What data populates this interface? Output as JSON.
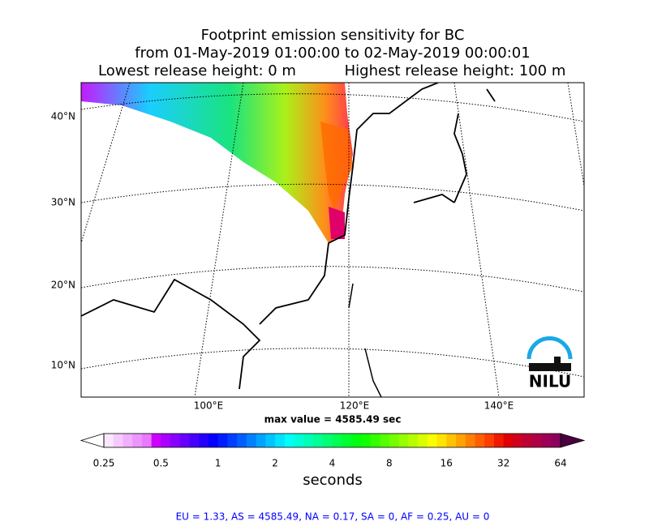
{
  "title": {
    "lines": [
      "Footprint emission sensitivity for BC",
      "from 01-May-2019 01:00:00 to 02-May-2019 00:00:01"
    ],
    "left": "Lowest release height: 0 m",
    "right": "Highest release height: 100 m"
  },
  "map": {
    "lat_labels": [
      "40°N",
      "30°N",
      "20°N",
      "10°N"
    ],
    "lon_labels": [
      "100°E",
      "120°E",
      "140°E"
    ],
    "logo": "NILU"
  },
  "max_value": "max value = 4585.49 sec",
  "colorbar": {
    "ticks": [
      "0.25",
      "0.5",
      "1",
      "2",
      "4",
      "8",
      "16",
      "32",
      "64"
    ],
    "label": "seconds"
  },
  "stats": "EU = 1.33,  AS = 4585.49,  NA = 0.17,  SA = 0,  AF = 0.25,  AU = 0"
}
